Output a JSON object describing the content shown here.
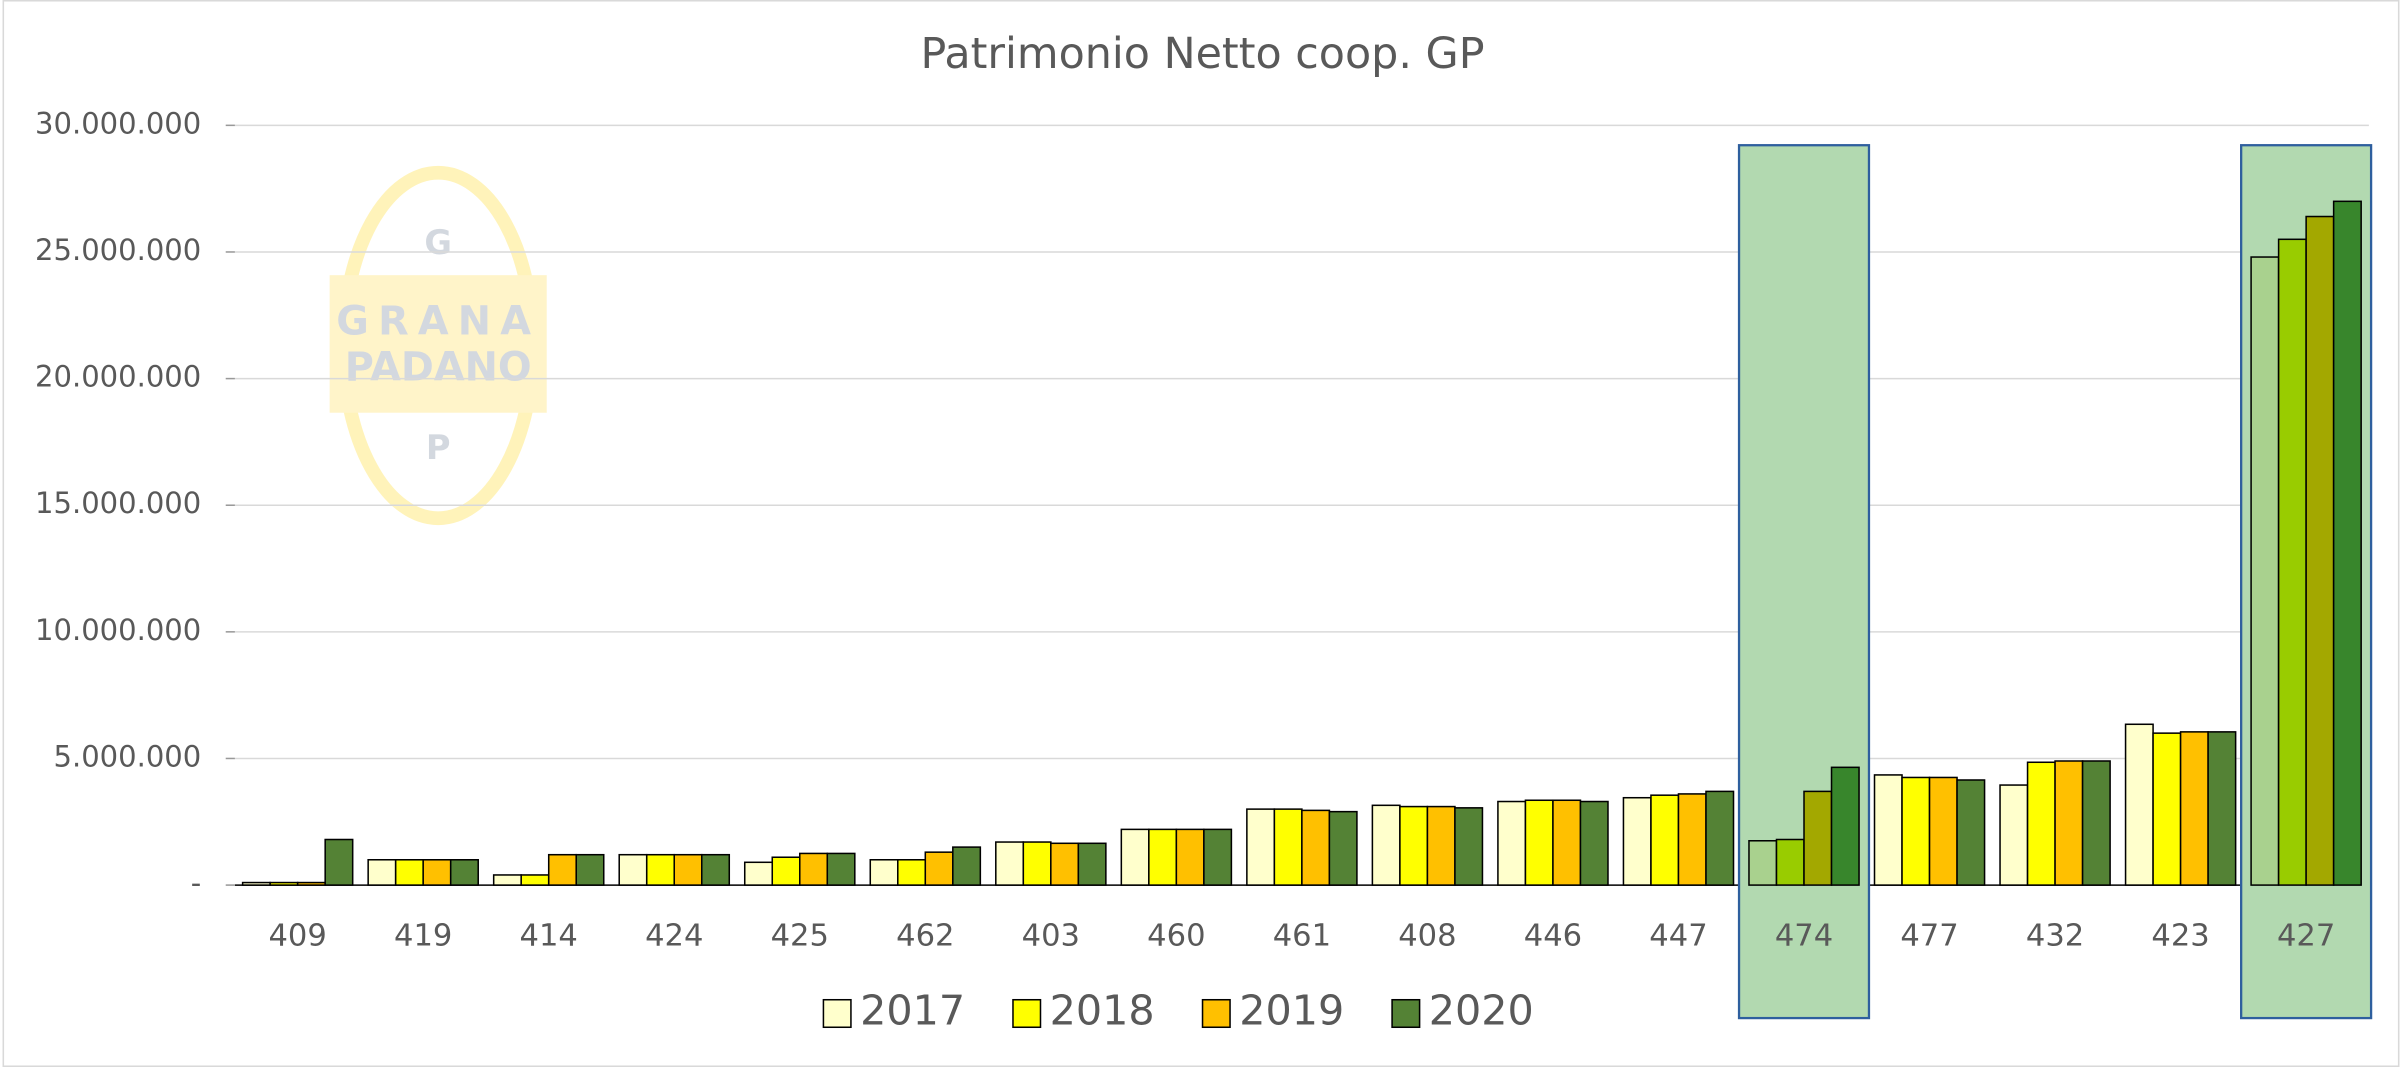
{
  "chart_data": {
    "type": "bar",
    "title": "Patrimonio Netto coop. GP",
    "categories": [
      "409",
      "419",
      "414",
      "424",
      "425",
      "462",
      "403",
      "460",
      "461",
      "408",
      "446",
      "447",
      "474",
      "477",
      "432",
      "423",
      "427"
    ],
    "series": [
      {
        "name": "2017",
        "color": "#ffffcc",
        "values": [
          100000,
          1000000,
          400000,
          1200000,
          900000,
          1000000,
          1700000,
          2200000,
          3000000,
          3150000,
          3300000,
          3450000,
          1750000,
          4350000,
          3950000,
          6350000,
          24800000
        ]
      },
      {
        "name": "2018",
        "color": "#ffff00",
        "values": [
          100000,
          1000000,
          400000,
          1200000,
          1100000,
          1000000,
          1700000,
          2200000,
          3000000,
          3100000,
          3350000,
          3550000,
          1800000,
          4250000,
          4850000,
          6000000,
          25500000
        ]
      },
      {
        "name": "2019",
        "color": "#ffc000",
        "values": [
          100000,
          1000000,
          1200000,
          1200000,
          1250000,
          1300000,
          1650000,
          2200000,
          2950000,
          3100000,
          3350000,
          3600000,
          3700000,
          4250000,
          4900000,
          6050000,
          26400000
        ]
      },
      {
        "name": "2020",
        "color": "#548235",
        "values": [
          1800000,
          1000000,
          1200000,
          1200000,
          1250000,
          1500000,
          1650000,
          2200000,
          2900000,
          3050000,
          3300000,
          3700000,
          4650000,
          4150000,
          4900000,
          6050000,
          27000000
        ]
      }
    ],
    "ylim": [
      0,
      30000000
    ],
    "yticks": [
      {
        "value": 0,
        "label": "-"
      },
      {
        "value": 5000000,
        "label": "5.000.000"
      },
      {
        "value": 10000000,
        "label": "10.000.000"
      },
      {
        "value": 15000000,
        "label": "15.000.000"
      },
      {
        "value": 20000000,
        "label": "20.000.000"
      },
      {
        "value": 25000000,
        "label": "25.000.000"
      },
      {
        "value": 30000000,
        "label": "30.000.000"
      }
    ],
    "grid": true,
    "legend": "bottom",
    "highlight": {
      "categories": [
        "474",
        "427"
      ],
      "fill": "#b2d9b0",
      "border": "#2e5f9e",
      "series_colors": [
        "#a9d18e",
        "#99cc00",
        "#a3a800",
        "#38862c"
      ]
    },
    "watermark": {
      "top": "G",
      "line1": "GRANA",
      "line2": "PADANO",
      "bottom": "P"
    }
  }
}
